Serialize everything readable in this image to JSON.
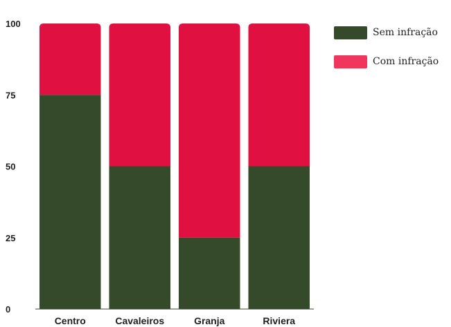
{
  "chart_data": {
    "type": "bar",
    "stacked": true,
    "categories": [
      "Centro",
      "Cavaleiros",
      "Granja",
      "Riviera"
    ],
    "series": [
      {
        "name": "Sem infração",
        "values": [
          75,
          50,
          25,
          50
        ],
        "color": "#344a2b"
      },
      {
        "name": "Com infração",
        "values": [
          25,
          50,
          75,
          50
        ],
        "color": "#e01040"
      }
    ],
    "yticks": [
      0,
      25,
      50,
      75,
      100
    ],
    "ylim": [
      0,
      100
    ],
    "grid": false,
    "legend_position": "top-right"
  },
  "legend": {
    "items": [
      {
        "label": "Sem infração",
        "color": "#344a2b"
      },
      {
        "label": "Com infração",
        "color": "#f0365c"
      }
    ]
  }
}
